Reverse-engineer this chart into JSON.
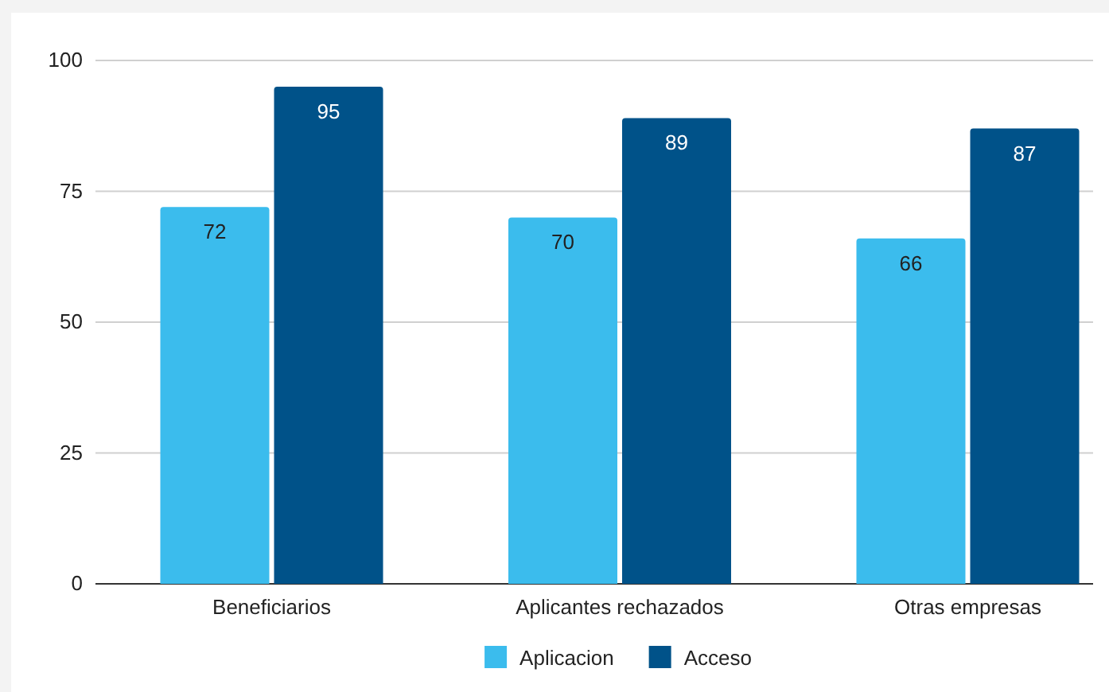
{
  "chart_data": {
    "type": "bar",
    "categories": [
      "Beneficiarios",
      "Aplicantes rechazados",
      "Otras empresas"
    ],
    "series": [
      {
        "name": "Aplicacion",
        "color": "#3bbced",
        "values": [
          72,
          70,
          66
        ]
      },
      {
        "name": "Acceso",
        "color": "#005289",
        "values": [
          95,
          89,
          87
        ]
      }
    ],
    "ylim": [
      0,
      100
    ],
    "yticks": [
      0,
      25,
      50,
      75,
      100
    ],
    "grid": "y",
    "legend": "bottom",
    "data_labels": true
  }
}
